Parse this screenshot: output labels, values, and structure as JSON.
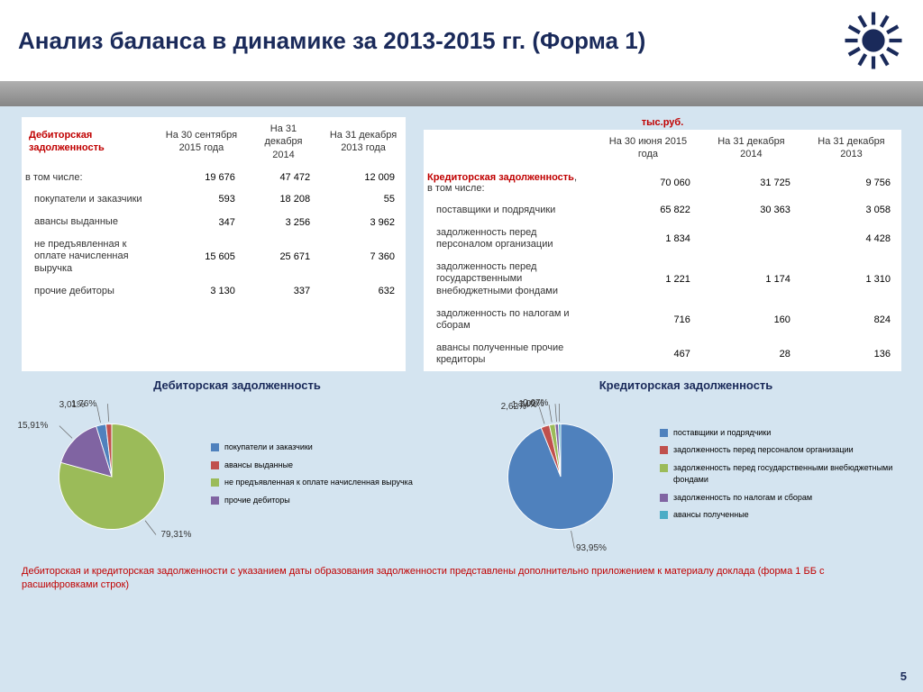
{
  "header": {
    "title": "Анализ баланса в динамике за 2013-2015 гг. (Форма 1)"
  },
  "unit": "тыс.руб.",
  "left_table": {
    "title": "Дебиторская задолженность",
    "cols": [
      "На 30 сентября 2015 года",
      "На 31 декабря 2014",
      "На 31 декабря 2013 года"
    ],
    "sub": "в том числе:",
    "total": [
      "19 676",
      "47 472",
      "12 009"
    ],
    "rows": [
      {
        "label": "покупатели и заказчики",
        "vals": [
          "593",
          "18 208",
          "55"
        ]
      },
      {
        "label": "авансы выданные",
        "vals": [
          "347",
          "3 256",
          "3 962"
        ]
      },
      {
        "label": "не предъявленная к оплате начисленная выручка",
        "vals": [
          "15 605",
          "25 671",
          "7 360"
        ]
      },
      {
        "label": "прочие дебиторы",
        "vals": [
          "3 130",
          "337",
          "632"
        ]
      }
    ]
  },
  "right_table": {
    "title": "Кредиторская задолженность",
    "cols": [
      "На 30 июня 2015 года",
      "На 31 декабря 2014",
      "На 31 декабря 2013"
    ],
    "sub": "в том числе:",
    "total": [
      "70 060",
      "31 725",
      "9 756"
    ],
    "rows": [
      {
        "label": "поставщики и подрядчики",
        "vals": [
          "65 822",
          "30 363",
          "3 058"
        ]
      },
      {
        "label": "задолженность перед персоналом организации",
        "vals": [
          "1 834",
          "",
          "4 428"
        ]
      },
      {
        "label": "задолженность перед государственными внебюджетными фондами",
        "vals": [
          "1 221",
          "1 174",
          "1 310"
        ]
      },
      {
        "label": "задолженность по налогам и сборам",
        "vals": [
          "716",
          "160",
          "824"
        ]
      },
      {
        "label": "авансы полученные прочие кредиторы",
        "vals": [
          "467",
          "28",
          "136"
        ]
      }
    ]
  },
  "chart_left": {
    "title": "Дебиторская задолженность",
    "slices": [
      {
        "label": "не предъявленная к оплате начисленная выручка",
        "pct": 79.31,
        "color": "#9bbb59",
        "txt": "79,31%"
      },
      {
        "label": "прочие дебиторы",
        "pct": 15.91,
        "color": "#8064a2",
        "txt": "15,91%"
      },
      {
        "label": "покупатели и заказчики",
        "pct": 3.01,
        "color": "#4f81bd",
        "txt": "3,01%"
      },
      {
        "label": "авансы выданные",
        "pct": 1.76,
        "color": "#c0504d",
        "txt": "1,76%"
      }
    ],
    "legend_order": [
      2,
      3,
      0,
      1
    ]
  },
  "chart_right": {
    "title": "Кредиторская задолженность",
    "slices": [
      {
        "label": "поставщики и подрядчики",
        "pct": 93.95,
        "color": "#4f81bd",
        "txt": "93,95%"
      },
      {
        "label": "задолженность перед персоналом организации",
        "pct": 2.62,
        "color": "#c0504d",
        "txt": "2,62%"
      },
      {
        "label": "задолженность перед государственными внебюджетными фондами",
        "pct": 1.74,
        "color": "#9bbb59",
        "txt": "1,74%"
      },
      {
        "label": "задолженность по налогам и сборам",
        "pct": 1.02,
        "color": "#8064a2",
        "txt": "1,02%"
      },
      {
        "label": "авансы полученные",
        "pct": 0.67,
        "color": "#4bacc6",
        "txt": "0,67%"
      }
    ],
    "legend_order": [
      0,
      1,
      2,
      3,
      4
    ]
  },
  "footnote": "Дебиторская  и кредиторская задолженности с  указанием даты  образования задолженности представлены дополнительно приложением к материалу доклада (форма 1 ББ с расшифровками строк)",
  "pageNum": "5"
}
